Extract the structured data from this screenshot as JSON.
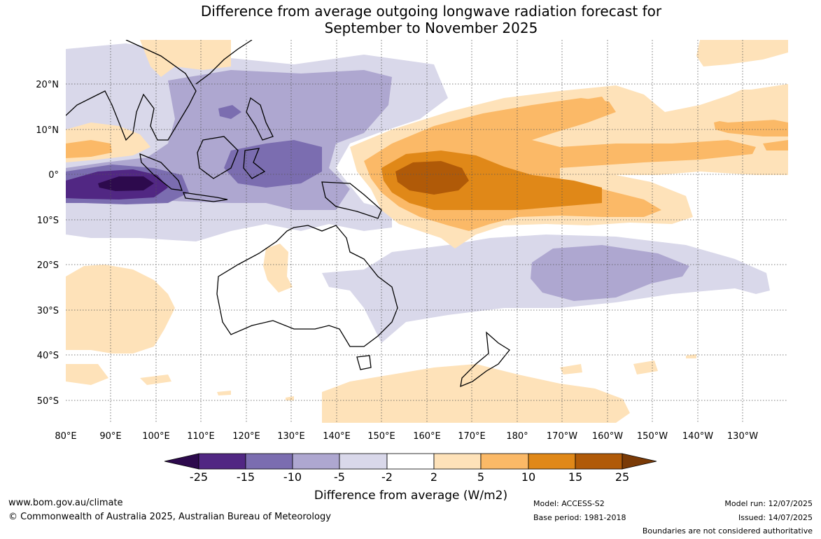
{
  "title_line1": "Difference from average outgoing longwave radiation forecast for",
  "title_line2": "September to November 2025",
  "map": {
    "lon_ticks": [
      "80°E",
      "90°E",
      "100°E",
      "110°E",
      "120°E",
      "130°E",
      "140°E",
      "150°E",
      "160°E",
      "170°E",
      "180°",
      "170°W",
      "160°W",
      "150°W",
      "140°W",
      "130°W"
    ],
    "lat_ticks": [
      "20°N",
      "10°N",
      "0°",
      "10°S",
      "20°S",
      "30°S",
      "40°S",
      "50°S"
    ],
    "grid": true
  },
  "legend": {
    "label": "Difference from average (W/m2)",
    "ticks": [
      "-25",
      "-15",
      "-10",
      "-5",
      "-2",
      "2",
      "5",
      "10",
      "15",
      "25"
    ],
    "colors": {
      "below_-25": "#2d0a4d",
      "-25_-15": "#512783",
      "-15_-10": "#7b6db0",
      "-10_-5": "#aea7d0",
      "-5_-2": "#d9d8ea",
      "-2_2": "#ffffff",
      "2_5": "#fee2b9",
      "5_10": "#fbb967",
      "10_15": "#e08818",
      "15_25": "#b05a08",
      "above_25": "#7a3a06"
    }
  },
  "footer": {
    "website": "www.bom.gov.au/climate",
    "copyright": "© Commonwealth of Australia 2025, Australian Bureau of Meteorology",
    "model": "Model: ACCESS-S2",
    "base_period": "Base period: 1981-2018",
    "model_run": "Model run: 12/07/2025",
    "issued": "Issued: 14/07/2025",
    "boundaries": "Boundaries are not considered authoritative"
  }
}
